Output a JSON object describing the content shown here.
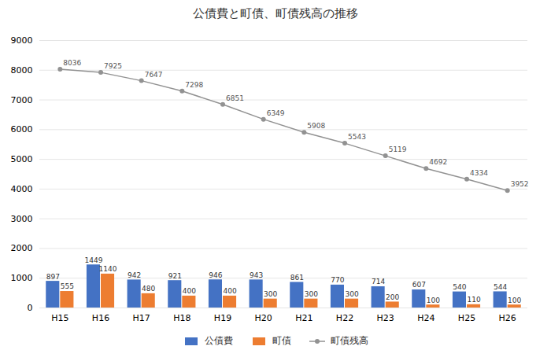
{
  "chart_data": {
    "type": "bar",
    "title": "公債費と町債、町債残高の推移",
    "categories": [
      "H15",
      "H16",
      "H17",
      "H18",
      "H19",
      "H20",
      "H21",
      "H22",
      "H23",
      "H24",
      "H25",
      "H26"
    ],
    "series": [
      {
        "name": "公債費",
        "type": "bar",
        "color": "#4472C4",
        "values": [
          897,
          1449,
          942,
          921,
          946,
          943,
          861,
          770,
          714,
          607,
          540,
          544
        ]
      },
      {
        "name": "町債",
        "type": "bar",
        "color": "#ED7D31",
        "values": [
          555,
          1140,
          480,
          400,
          400,
          300,
          300,
          300,
          200,
          100,
          110,
          100
        ]
      },
      {
        "name": "町債残高",
        "type": "line",
        "color": "#929292",
        "marker": "o",
        "values": [
          8036,
          7925,
          7647,
          7298,
          6851,
          6349,
          5908,
          5543,
          5119,
          4692,
          4334,
          3952
        ]
      }
    ],
    "ylim": [
      0,
      9000
    ],
    "yticks": [
      0,
      1000,
      2000,
      3000,
      4000,
      5000,
      6000,
      7000,
      8000,
      9000
    ],
    "grid": true,
    "legend": "bottom",
    "data_labels": true
  }
}
